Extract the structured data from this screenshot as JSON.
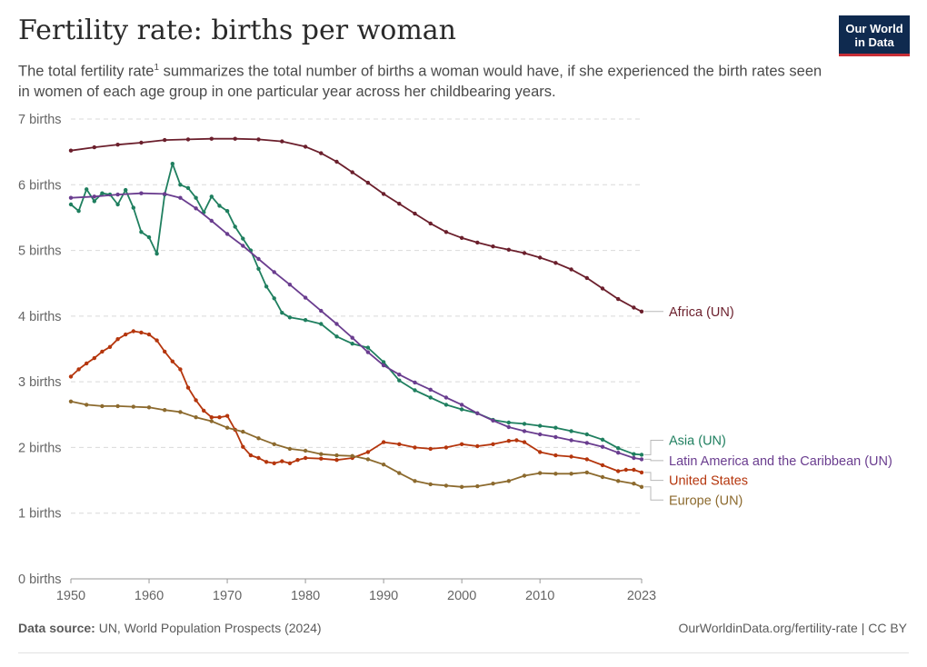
{
  "header": {
    "title": "Fertility rate: births per woman",
    "subtitle_part1": "The total fertility rate",
    "subtitle_sup": "1",
    "subtitle_part2": " summarizes the total number of births a woman would have, if she experienced the birth rates seen in women of each age group in one particular year across her childbearing years.",
    "logo_line1": "Our World",
    "logo_line2": "in Data"
  },
  "footer": {
    "source_label": "Data source:",
    "source_text": " UN, World Population Prospects (2024)",
    "link": "OurWorldinData.org/fertility-rate | CC BY"
  },
  "colors": {
    "Africa (UN)": "#6b1f2c",
    "Asia (UN)": "#1f7f5f",
    "Latin America and the Caribbean (UN)": "#6a3d8f",
    "United States": "#b5360d",
    "Europe (UN)": "#8c6a2e",
    "grid": "#d9d9d9",
    "axis": "#999999"
  },
  "chart_data": {
    "type": "line",
    "title": "Fertility rate: births per woman",
    "xlabel": "",
    "ylabel": "",
    "xlim": [
      1950,
      2023
    ],
    "ylim": [
      0,
      7
    ],
    "grid": true,
    "legend": "right",
    "y_ticks": [
      0,
      1,
      2,
      3,
      4,
      5,
      6,
      7
    ],
    "y_tick_labels": [
      "0 births",
      "1 births",
      "2 births",
      "3 births",
      "4 births",
      "5 births",
      "6 births",
      "7 births"
    ],
    "x_ticks": [
      1950,
      1960,
      1970,
      1980,
      1990,
      2000,
      2010,
      2023
    ],
    "x_tick_labels": [
      "1950",
      "1960",
      "1970",
      "1980",
      "1990",
      "2000",
      "2010",
      "2023"
    ],
    "series": [
      {
        "name": "Africa (UN)",
        "x": [
          1950,
          1953,
          1956,
          1959,
          1962,
          1965,
          1968,
          1971,
          1974,
          1977,
          1980,
          1982,
          1984,
          1986,
          1988,
          1990,
          1992,
          1994,
          1996,
          1998,
          2000,
          2002,
          2004,
          2006,
          2008,
          2010,
          2012,
          2014,
          2016,
          2018,
          2020,
          2022,
          2023
        ],
        "y": [
          6.52,
          6.57,
          6.61,
          6.64,
          6.68,
          6.69,
          6.7,
          6.7,
          6.69,
          6.66,
          6.58,
          6.48,
          6.35,
          6.19,
          6.03,
          5.86,
          5.71,
          5.56,
          5.41,
          5.28,
          5.19,
          5.12,
          5.06,
          5.01,
          4.96,
          4.89,
          4.81,
          4.71,
          4.58,
          4.42,
          4.26,
          4.13,
          4.07
        ]
      },
      {
        "name": "Asia (UN)",
        "x": [
          1950,
          1951,
          1952,
          1953,
          1954,
          1955,
          1956,
          1957,
          1958,
          1959,
          1960,
          1961,
          1962,
          1963,
          1964,
          1965,
          1966,
          1967,
          1968,
          1969,
          1970,
          1971,
          1972,
          1973,
          1974,
          1975,
          1976,
          1977,
          1978,
          1980,
          1982,
          1984,
          1986,
          1988,
          1990,
          1992,
          1994,
          1996,
          1998,
          2000,
          2002,
          2004,
          2006,
          2008,
          2010,
          2012,
          2014,
          2016,
          2018,
          2020,
          2022,
          2023
        ],
        "y": [
          5.7,
          5.6,
          5.93,
          5.75,
          5.87,
          5.85,
          5.7,
          5.92,
          5.65,
          5.28,
          5.2,
          4.95,
          5.85,
          6.32,
          6.0,
          5.95,
          5.8,
          5.58,
          5.82,
          5.68,
          5.6,
          5.36,
          5.18,
          5.0,
          4.72,
          4.45,
          4.27,
          4.05,
          3.98,
          3.94,
          3.88,
          3.69,
          3.58,
          3.52,
          3.3,
          3.02,
          2.87,
          2.76,
          2.65,
          2.58,
          2.52,
          2.42,
          2.38,
          2.36,
          2.33,
          2.3,
          2.25,
          2.2,
          2.12,
          1.99,
          1.9,
          1.89
        ]
      },
      {
        "name": "Latin America and the Caribbean (UN)",
        "x": [
          1950,
          1953,
          1956,
          1959,
          1962,
          1964,
          1966,
          1968,
          1970,
          1972,
          1974,
          1976,
          1978,
          1980,
          1982,
          1984,
          1986,
          1988,
          1990,
          1992,
          1994,
          1996,
          1998,
          2000,
          2002,
          2004,
          2006,
          2008,
          2010,
          2012,
          2014,
          2016,
          2018,
          2020,
          2022,
          2023
        ],
        "y": [
          5.8,
          5.82,
          5.85,
          5.87,
          5.86,
          5.8,
          5.64,
          5.45,
          5.25,
          5.07,
          4.87,
          4.67,
          4.48,
          4.28,
          4.08,
          3.88,
          3.67,
          3.45,
          3.25,
          3.11,
          2.99,
          2.88,
          2.76,
          2.65,
          2.52,
          2.41,
          2.31,
          2.25,
          2.2,
          2.16,
          2.11,
          2.07,
          2.01,
          1.92,
          1.84,
          1.82
        ]
      },
      {
        "name": "United States",
        "x": [
          1950,
          1951,
          1952,
          1953,
          1954,
          1955,
          1956,
          1957,
          1958,
          1959,
          1960,
          1961,
          1962,
          1963,
          1964,
          1965,
          1966,
          1967,
          1968,
          1969,
          1970,
          1971,
          1972,
          1973,
          1974,
          1975,
          1976,
          1977,
          1978,
          1979,
          1980,
          1982,
          1984,
          1986,
          1988,
          1990,
          1992,
          1994,
          1996,
          1998,
          2000,
          2002,
          2004,
          2006,
          2007,
          2008,
          2010,
          2012,
          2014,
          2016,
          2018,
          2020,
          2021,
          2022,
          2023
        ],
        "y": [
          3.08,
          3.19,
          3.28,
          3.36,
          3.46,
          3.53,
          3.65,
          3.72,
          3.77,
          3.75,
          3.72,
          3.63,
          3.46,
          3.31,
          3.19,
          2.91,
          2.72,
          2.56,
          2.46,
          2.46,
          2.48,
          2.27,
          2.01,
          1.88,
          1.84,
          1.78,
          1.76,
          1.79,
          1.76,
          1.81,
          1.84,
          1.83,
          1.81,
          1.84,
          1.93,
          2.08,
          2.05,
          2.0,
          1.98,
          2.0,
          2.05,
          2.02,
          2.05,
          2.1,
          2.11,
          2.08,
          1.93,
          1.88,
          1.86,
          1.82,
          1.73,
          1.64,
          1.66,
          1.66,
          1.62
        ]
      },
      {
        "name": "Europe (UN)",
        "x": [
          1950,
          1952,
          1954,
          1956,
          1958,
          1960,
          1962,
          1964,
          1966,
          1968,
          1970,
          1972,
          1974,
          1976,
          1978,
          1980,
          1982,
          1984,
          1986,
          1988,
          1990,
          1992,
          1994,
          1996,
          1998,
          2000,
          2002,
          2004,
          2006,
          2008,
          2010,
          2012,
          2014,
          2016,
          2018,
          2020,
          2022,
          2023
        ],
        "y": [
          2.7,
          2.65,
          2.63,
          2.63,
          2.62,
          2.61,
          2.57,
          2.54,
          2.46,
          2.4,
          2.3,
          2.24,
          2.14,
          2.05,
          1.98,
          1.95,
          1.9,
          1.88,
          1.87,
          1.82,
          1.74,
          1.61,
          1.49,
          1.44,
          1.42,
          1.4,
          1.41,
          1.45,
          1.49,
          1.57,
          1.61,
          1.6,
          1.6,
          1.62,
          1.55,
          1.49,
          1.45,
          1.4
        ]
      }
    ],
    "legend_labels": [
      {
        "name": "Africa (UN)",
        "label_y": 4.07
      },
      {
        "name": "Asia (UN)",
        "label_y": 2.11
      },
      {
        "name": "Latin America and the Caribbean (UN)",
        "label_y": 1.8
      },
      {
        "name": "United States",
        "label_y": 1.5
      },
      {
        "name": "Europe (UN)",
        "label_y": 1.2
      }
    ]
  }
}
